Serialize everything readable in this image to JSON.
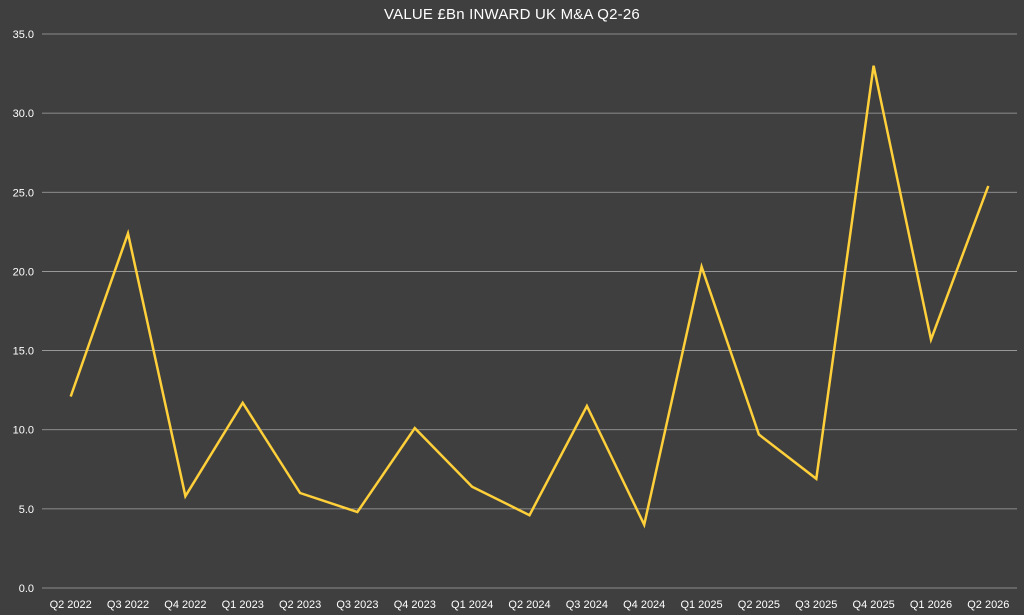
{
  "chart_data": {
    "type": "line",
    "title": "VALUE £Bn INWARD UK M&A Q2-26",
    "xlabel": "",
    "ylabel": "",
    "categories": [
      "Q2 2022",
      "Q3 2022",
      "Q4 2022",
      "Q1 2023",
      "Q2 2023",
      "Q3 2023",
      "Q4 2023",
      "Q1 2024",
      "Q2 2024",
      "Q3 2024",
      "Q4 2024",
      "Q1 2025",
      "Q2 2025",
      "Q3 2025",
      "Q4 2025",
      "Q1 2026",
      "Q2 2026"
    ],
    "series": [
      {
        "values": [
          12.1,
          22.4,
          5.8,
          11.7,
          6.0,
          4.8,
          10.1,
          6.4,
          4.6,
          11.5,
          4.0,
          20.3,
          9.7,
          6.9,
          33.0,
          15.7,
          25.4
        ]
      }
    ],
    "ylim": [
      0,
      35
    ],
    "yticks": [
      "0.0",
      "5.0",
      "10.0",
      "15.0",
      "20.0",
      "25.0",
      "30.0",
      "35.0"
    ],
    "grid": true,
    "legend": "none",
    "colors": {
      "background": "#3f3f3f",
      "line": "#ffd03a",
      "grid": "#a6a6a6",
      "text": "#ffffff"
    }
  }
}
